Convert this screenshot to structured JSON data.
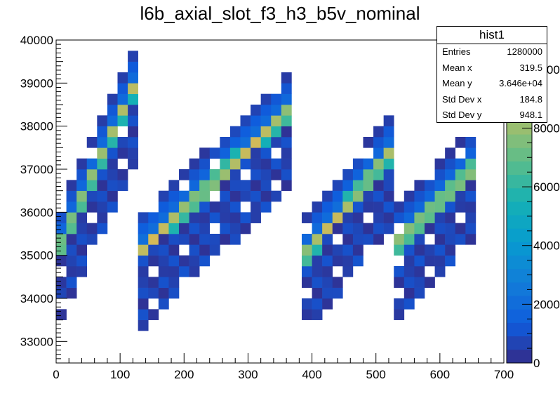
{
  "chart_data": {
    "type": "heatmap",
    "title": "l6b_axial_slot_f3_h3_b5v_nominal",
    "xlim": [
      0,
      700
    ],
    "ylim": [
      32500,
      40000
    ],
    "xticks": [
      0,
      100,
      200,
      300,
      400,
      500,
      600,
      700
    ],
    "yticks": [
      33000,
      34000,
      35000,
      36000,
      37000,
      38000,
      39000,
      40000
    ],
    "zlim": [
      0,
      11000
    ],
    "zticks": [
      0,
      2000,
      4000,
      6000,
      8000,
      10000
    ],
    "zticklabels": [
      "0",
      "2000",
      "4000",
      "6000",
      "8000",
      "10000"
    ],
    "palette": "kBird",
    "x_bin_width": 16,
    "y_bin_width": 250,
    "description": "2D histogram: sawtooth bands of counts; 4 teeth; peak near ~11000 at the band maxima",
    "teeth": [
      {
        "x_start": 0,
        "x_end": 125,
        "y_start": 35000,
        "y_end": 39000
      },
      {
        "x_start": 125,
        "x_end": 375,
        "y_start": 35000,
        "y_end": 38500
      },
      {
        "x_start": 390,
        "x_end": 530,
        "y_start": 35000,
        "y_end": 37500
      },
      {
        "x_start": 530,
        "x_end": 650,
        "y_start": 35200,
        "y_end": 37000
      }
    ]
  },
  "stats": {
    "title": "hist1",
    "rows": [
      {
        "label": "Entries",
        "value": "1280000"
      },
      {
        "label": "Mean x",
        "value": "319.5"
      },
      {
        "label": "Mean y",
        "value": "3.646e+04"
      },
      {
        "label": "Std Dev x",
        "value": "184.8"
      },
      {
        "label": "Std Dev y",
        "value": "948.1"
      }
    ]
  }
}
